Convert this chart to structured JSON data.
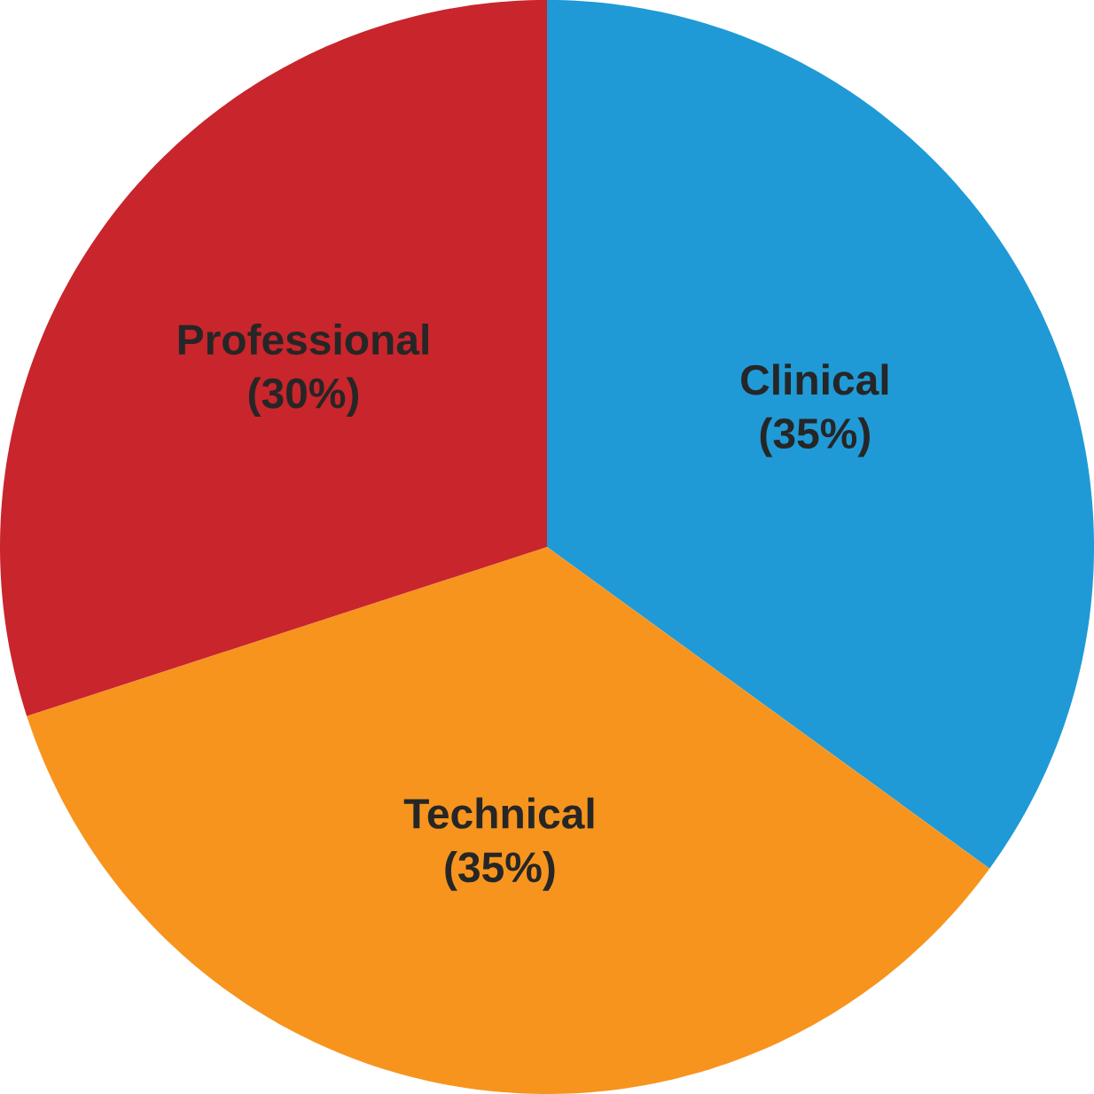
{
  "chart_data": {
    "type": "pie",
    "categories": [
      "Clinical",
      "Technical",
      "Professional"
    ],
    "values": [
      35,
      35,
      30
    ],
    "value_labels": [
      "(35%)",
      "(35%)",
      "(30%)"
    ],
    "colors": [
      "#1f9ad6",
      "#f7941d",
      "#c9252c"
    ]
  }
}
